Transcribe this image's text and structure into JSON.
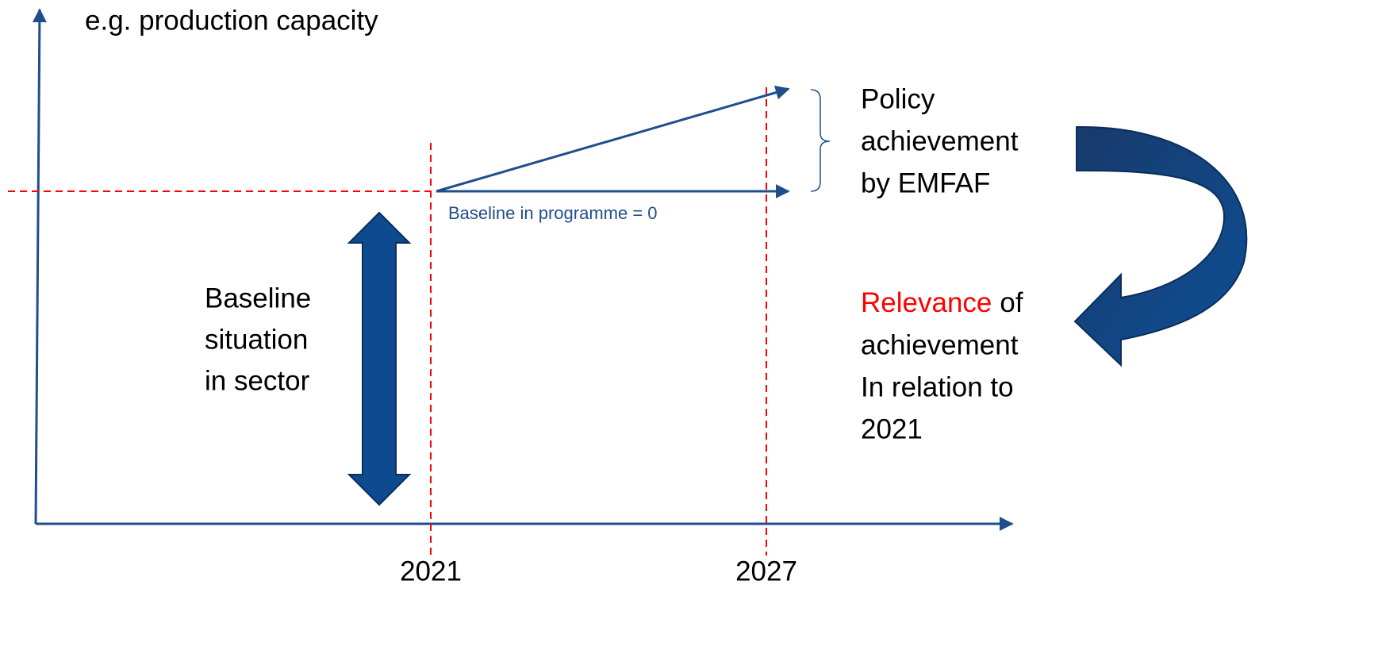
{
  "axis_label": "e.g. production capacity",
  "x_labels": [
    "2021",
    "2027"
  ],
  "baseline_programme": "Baseline in programme = 0",
  "baseline_sector": [
    "Baseline",
    "situation",
    "in sector"
  ],
  "policy": [
    "Policy",
    "achievement",
    "by EMFAF"
  ],
  "relevance": {
    "highlight": "Relevance",
    "rest": "of",
    "lines": [
      "achievement",
      "In relation to",
      "2021"
    ]
  }
}
